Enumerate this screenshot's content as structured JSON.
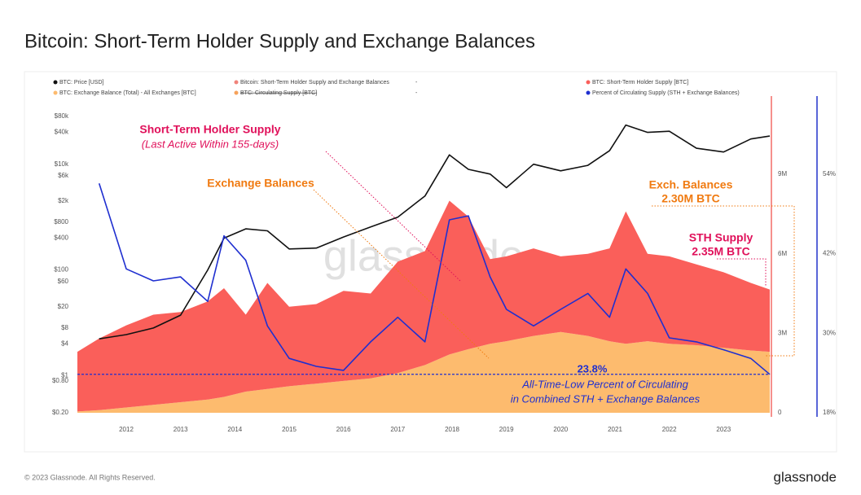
{
  "chart_data": {
    "type": "line",
    "title": "Bitcoin: Short-Term Holder Supply and Exchange Balances",
    "footer": "© 2023 Glassnode. All Rights Reserved.",
    "brand": "glassnode",
    "watermark": "glassnode",
    "stacked": true,
    "x": [
      2011.1,
      2011.5,
      2012,
      2012.5,
      2013,
      2013.5,
      2013.8,
      2014.2,
      2014.6,
      2015,
      2015.5,
      2016,
      2016.5,
      2017,
      2017.5,
      2017.95,
      2018.3,
      2018.7,
      2019,
      2019.5,
      2020,
      2020.5,
      2020.9,
      2021.2,
      2021.6,
      2022,
      2022.5,
      2023,
      2023.5,
      2023.85
    ],
    "xlim": [
      2011.1,
      2023.85
    ],
    "xticks": [
      2012,
      2013,
      2014,
      2015,
      2016,
      2017,
      2018,
      2019,
      2020,
      2021,
      2022,
      2023
    ],
    "ylim": [
      0.2,
      80000
    ],
    "ylog": true,
    "yticks": [
      {
        "value": 0.2,
        "label": "$0.20"
      },
      {
        "value": 0.8,
        "label": "$0.80"
      },
      {
        "value": 1,
        "label": "$1"
      },
      {
        "value": 4,
        "label": "$4"
      },
      {
        "value": 8,
        "label": "$8"
      },
      {
        "value": 20,
        "label": "$20"
      },
      {
        "value": 60,
        "label": "$60"
      },
      {
        "value": 100,
        "label": "$100"
      },
      {
        "value": 400,
        "label": "$400"
      },
      {
        "value": 800,
        "label": "$800"
      },
      {
        "value": 2000,
        "label": "$2k"
      },
      {
        "value": 6000,
        "label": "$6k"
      },
      {
        "value": 10000,
        "label": "$10k"
      },
      {
        "value": 40000,
        "label": "$40k"
      },
      {
        "value": 80000,
        "label": "$80k"
      }
    ],
    "y2lim": [
      0,
      11180000
    ],
    "y2ticks": [
      0,
      {
        "value": 3000000,
        "label": "3M"
      },
      {
        "value": 6000000,
        "label": "6M"
      },
      {
        "value": 9000000,
        "label": "9M"
      }
    ],
    "y3lim": [
      18,
      62.7
    ],
    "y3ticks": [
      {
        "value": 18,
        "label": "18%"
      },
      {
        "value": 30,
        "label": "30%"
      },
      {
        "value": 42,
        "label": "42%"
      },
      {
        "value": 54,
        "label": "54%"
      }
    ],
    "series": [
      {
        "name": "BTC: Price [USD]",
        "color": "#111111",
        "axis": "y",
        "kind": "line",
        "values": [
          null,
          5,
          6,
          8,
          14,
          100,
          400,
          600,
          550,
          250,
          260,
          420,
          650,
          1000,
          2500,
          15000,
          8000,
          6500,
          3600,
          10000,
          7500,
          9500,
          18000,
          55000,
          40000,
          42000,
          20000,
          17000,
          30000,
          34000
        ]
      },
      {
        "name": "BTC: Short-Term Holder Supply [BTC]",
        "color": "#fa5f5a",
        "axis": "y2",
        "kind": "area",
        "values": [
          2250000,
          2700000,
          3100000,
          3400000,
          3400000,
          3700000,
          4100000,
          2900000,
          4000000,
          3000000,
          3000000,
          3400000,
          3200000,
          4200000,
          4300000,
          5800000,
          5000000,
          3200000,
          3200000,
          3300000,
          2850000,
          3100000,
          3500000,
          5000000,
          3300000,
          3300000,
          3050000,
          2850000,
          2550000,
          2350000
        ]
      },
      {
        "name": "BTC: Exchange Balance (Total) - All Exchanges [BTC]",
        "color": "#fdbb6e",
        "axis": "y2",
        "kind": "area",
        "values": [
          50000,
          100000,
          200000,
          300000,
          400000,
          500000,
          600000,
          800000,
          900000,
          1000000,
          1100000,
          1200000,
          1300000,
          1500000,
          1800000,
          2200000,
          2400000,
          2600000,
          2700000,
          2900000,
          3050000,
          2900000,
          2700000,
          2600000,
          2700000,
          2600000,
          2550000,
          2450000,
          2350000,
          2300000
        ]
      },
      {
        "name": "Percent of Circulating Supply (STH + Exchange Balances)",
        "color": "#1f2fd0",
        "axis": "y3",
        "kind": "line",
        "values": [
          null,
          52.6,
          39.7,
          37.9,
          38.5,
          34.8,
          44.7,
          41,
          31.1,
          26.2,
          25,
          24.4,
          28.7,
          32.4,
          28.7,
          47.1,
          47.7,
          38.5,
          33.6,
          31.1,
          33.6,
          36,
          32.4,
          39.7,
          36,
          29.3,
          28.7,
          27.5,
          26.2,
          23.8
        ]
      }
    ],
    "extra_legend": [
      {
        "name": "Bitcoin: Short-Term Holder Supply and Exchange Balances",
        "color": "#f0837a",
        "value": "-"
      },
      {
        "name": "BTC: Circulating Supply [BTC]",
        "color": "#f6a25a",
        "value": "-",
        "hidden": true
      }
    ],
    "annotations": {
      "sth_title": "Short-Term Holder Supply",
      "sth_sub": "(Last Active Within 155-days)",
      "exch_title": "Exchange Balances",
      "exch_end_title": "Exch. Balances",
      "exch_end_value": "2.30M BTC",
      "sth_end_title": "STH Supply",
      "sth_end_value": "2.35M BTC",
      "atl_value": "23.8%",
      "atl_line1": "All-Time-Low Percent of Circulating",
      "atl_line2": "in Combined STH + Exchange Balances"
    }
  }
}
